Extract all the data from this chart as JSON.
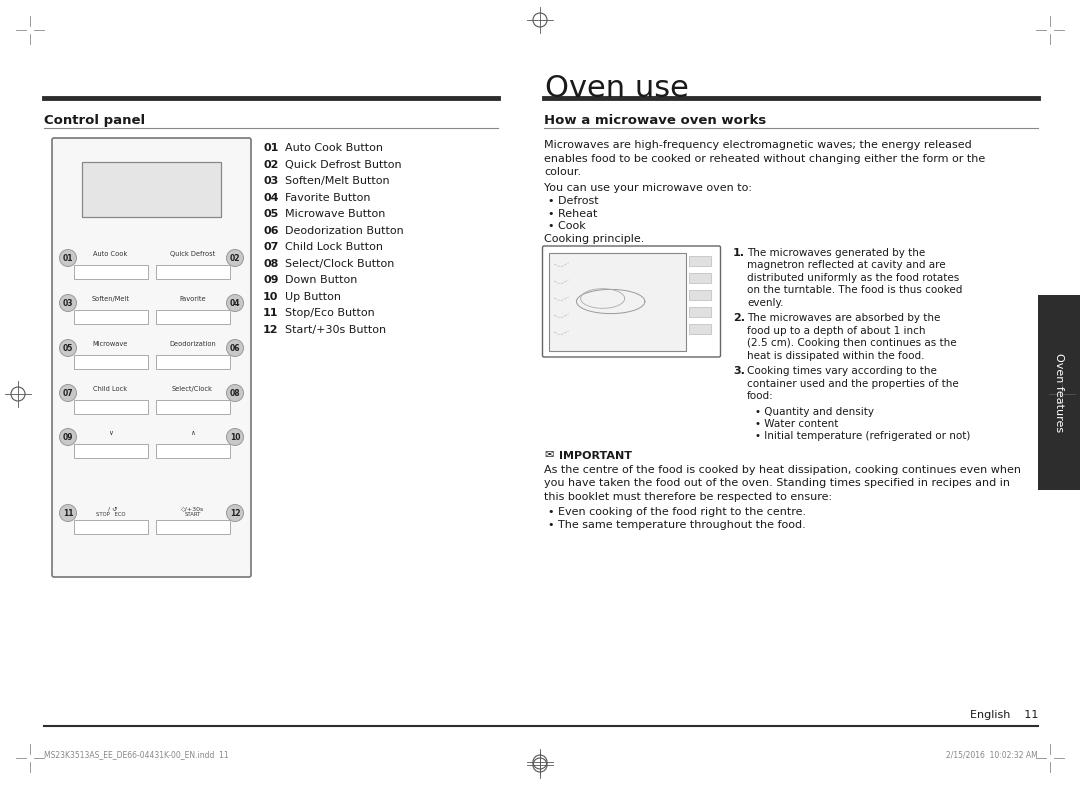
{
  "bg_color": "#ffffff",
  "title": "Oven use",
  "left_section_title": "Control panel",
  "right_section_title": "How a microwave oven works",
  "button_labels": [
    [
      "01",
      "Auto Cook Button"
    ],
    [
      "02",
      "Quick Defrost Button"
    ],
    [
      "03",
      "Soften/Melt Button"
    ],
    [
      "04",
      "Favorite Button"
    ],
    [
      "05",
      "Microwave Button"
    ],
    [
      "06",
      "Deodorization Button"
    ],
    [
      "07",
      "Child Lock Button"
    ],
    [
      "08",
      "Select/Clock Button"
    ],
    [
      "09",
      "Down Button"
    ],
    [
      "10",
      "Up Button"
    ],
    [
      "11",
      "Stop/Eco Button"
    ],
    [
      "12",
      "Start/+30s Button"
    ]
  ],
  "right_para1a": "Microwaves are high-frequency electromagnetic waves; the energy released",
  "right_para1b": "enables food to be cooked or reheated without changing either the form or the",
  "right_para1c": "colour.",
  "right_para2": "You can use your microwave oven to:",
  "bullets1": [
    "Defrost",
    "Reheat",
    "Cook"
  ],
  "cooking_principle": "Cooking principle.",
  "num1a": "The microwaves generated by the",
  "num1b": "magnetron reflected at cavity and are",
  "num1c": "distributed uniformly as the food rotates",
  "num1d": "on the turntable. The food is thus cooked",
  "num1e": "evenly.",
  "num2a": "The microwaves are absorbed by the",
  "num2b": "food up to a depth of about 1 inch",
  "num2c": "(2.5 cm). Cooking then continues as the",
  "num2d": "heat is dissipated within the food.",
  "num3a": "Cooking times vary according to the",
  "num3b": "container used and the properties of the",
  "num3c": "food:",
  "sub_bullets": [
    "Quantity and density",
    "Water content",
    "Initial temperature (refrigerated or not)"
  ],
  "important_label": "IMPORTANT",
  "imp1": "As the centre of the food is cooked by heat dissipation, cooking continues even when",
  "imp2": "you have taken the food out of the oven. Standing times specified in recipes and in",
  "imp3": "this booklet must therefore be respected to ensure:",
  "important_bullets": [
    "Even cooking of the food right to the centre.",
    "The same temperature throughout the food."
  ],
  "footer_left": "MS23K3513AS_EE_DE66-04431K-00_EN.indd  11",
  "footer_right": "2/15/2016  10:02:32 AM",
  "page_num": "English    11",
  "tab_text": "Oven features",
  "divider_color": "#2d2d2d",
  "text_color": "#1a1a1a",
  "panel_border": "#888888",
  "tab_bg": "#2d2d2d",
  "tab_text_color": "#ffffff",
  "gray_num": "#555555"
}
